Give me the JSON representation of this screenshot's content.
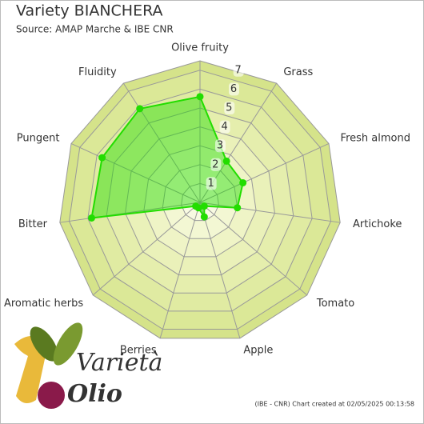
{
  "chart_data": {
    "type": "radar",
    "title": "Variety BIANCHERA",
    "subtitle": "Source: AMAP Marche & IBE CNR",
    "footer": "(IBE - CNR) Chart created at 02/05/2025 00:13:58",
    "logo": [
      "Varietà",
      "Olio"
    ],
    "categories": [
      "Olive fruity",
      "Grass",
      "Fresh almond",
      "Artichoke",
      "Tomato",
      "Apple",
      "Berries",
      "Aromatic herbs",
      "Bitter",
      "Pungent",
      "Fluidity"
    ],
    "values": [
      5.6,
      2.6,
      2.5,
      2.0,
      0.3,
      0.8,
      0.3,
      0.3,
      5.8,
      5.7,
      5.9
    ],
    "color": "#22dd00",
    "ylim": [
      0,
      7.5
    ],
    "yticks": [
      1,
      2,
      3,
      4,
      5,
      6,
      7
    ]
  }
}
